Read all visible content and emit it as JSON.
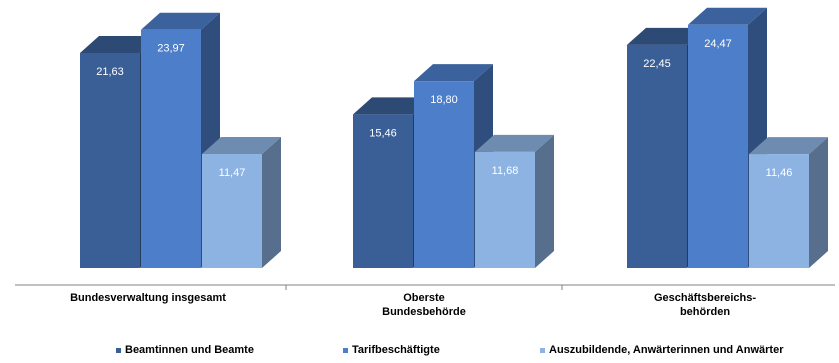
{
  "chart_data": {
    "type": "bar",
    "categories": [
      [
        "Bundesverwaltung insgesamt"
      ],
      [
        "Oberste",
        "Bundesbehörde"
      ],
      [
        "Geschäftsbereichs-",
        "behörden"
      ]
    ],
    "series": [
      {
        "name": "Beamtinnen und Beamte",
        "values": [
          21.63,
          15.46,
          22.45
        ],
        "labels": [
          "21,63",
          "15,46",
          "22,45"
        ],
        "color": "#3a5f96"
      },
      {
        "name": "Tarifbeschäftigte",
        "values": [
          23.97,
          18.8,
          24.47
        ],
        "labels": [
          "23,97",
          "18,80",
          "24,47"
        ],
        "color": "#4c7ec9"
      },
      {
        "name": "Auszubildende, Anwärterinnen und Anwärter",
        "values": [
          11.47,
          11.68,
          11.46
        ],
        "labels": [
          "11,47",
          "11,68",
          "11,46"
        ],
        "color": "#8db3e2"
      }
    ],
    "ylim": [
      0,
      27.5
    ],
    "grid": false,
    "legend_position": "bottom",
    "style": "3d-column"
  }
}
